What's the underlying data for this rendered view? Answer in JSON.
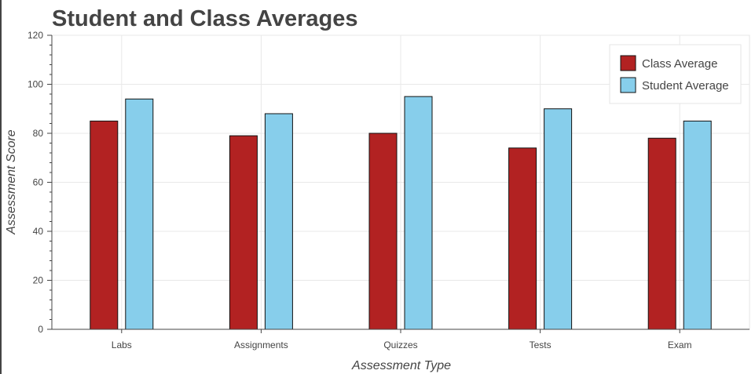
{
  "chart_data": {
    "type": "bar",
    "title": "Student and Class Averages",
    "xlabel": "Assessment Type",
    "ylabel": "Assessment Score",
    "categories": [
      "Labs",
      "Assignments",
      "Quizzes",
      "Tests",
      "Exam"
    ],
    "series": [
      {
        "name": "Class Average",
        "color": "#b22222",
        "values": [
          85,
          79,
          80,
          74,
          78
        ]
      },
      {
        "name": "Student Average",
        "color": "#87ceeb",
        "values": [
          94,
          88,
          95,
          90,
          85
        ]
      }
    ],
    "ylim": [
      0,
      120
    ],
    "yticks": [
      0,
      20,
      40,
      60,
      80,
      100,
      120
    ],
    "grid": true,
    "legend_position": "top-right"
  }
}
